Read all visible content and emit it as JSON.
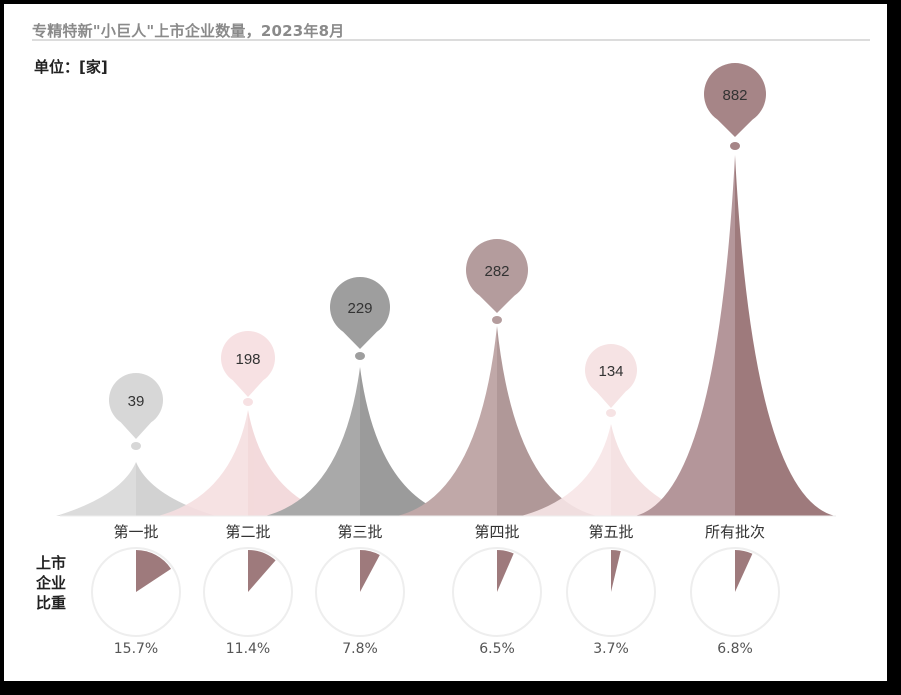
{
  "title": "专精特新\"小巨人\"上市企业数量，2023年8月",
  "unit_label": "单位：[家]",
  "side_label": "上市企业比重",
  "chart_data": [
    {
      "type": "bar",
      "title": "专精特新\"小巨人\"上市企业数量，2023年8月",
      "ylabel": "单位：[家]",
      "xlabel": "",
      "grid": false,
      "legend": "none",
      "categories": [
        "第一批",
        "第二批",
        "第三批",
        "第四批",
        "第五批",
        "所有批次"
      ],
      "values": [
        39,
        198,
        229,
        282,
        134,
        882
      ],
      "ylim": [
        0,
        882
      ],
      "style": "spike/cone bars with pin-shaped value markers"
    },
    {
      "type": "pie",
      "title": "上市企业比重",
      "categories": [
        "第一批",
        "第二批",
        "第三批",
        "第四批",
        "第五批",
        "所有批次"
      ],
      "values": [
        15.7,
        11.4,
        7.8,
        6.5,
        3.7,
        6.8
      ],
      "unit": "%"
    }
  ],
  "batches": [
    {
      "label": "第一批",
      "value": "39",
      "pct": "15.7%",
      "color_left": "#dcdcdc",
      "color_right": "#d2d2d2",
      "pin_color": "#d7d7d7"
    },
    {
      "label": "第二批",
      "value": "198",
      "pct": "11.4%",
      "color_left": "#f6dfe1",
      "color_right": "#f2d6d8",
      "pin_color": "#f7e1e3"
    },
    {
      "label": "第三批",
      "value": "229",
      "pct": "7.8%",
      "color_left": "#a9a9a9",
      "color_right": "#9b9b9b",
      "pin_color": "#9e9e9e"
    },
    {
      "label": "第四批",
      "value": "282",
      "pct": "6.5%",
      "color_left": "#c0a8a8",
      "color_right": "#b09898",
      "pin_color": "#b49c9d"
    },
    {
      "label": "第五批",
      "value": "134",
      "pct": "3.7%",
      "color_left": "#f8e6e7",
      "color_right": "#f4dfe0",
      "pin_color": "#f6e3e4"
    },
    {
      "label": "所有批次",
      "value": "882",
      "pct": "6.8%",
      "color_left": "#b4969a",
      "color_right": "#9e7a7c",
      "pin_color": "#a68587"
    }
  ],
  "colors": {
    "pie_slice": "#9e7a7c",
    "pie_outline": "#eeeeee",
    "title": "#8a8a8a"
  }
}
